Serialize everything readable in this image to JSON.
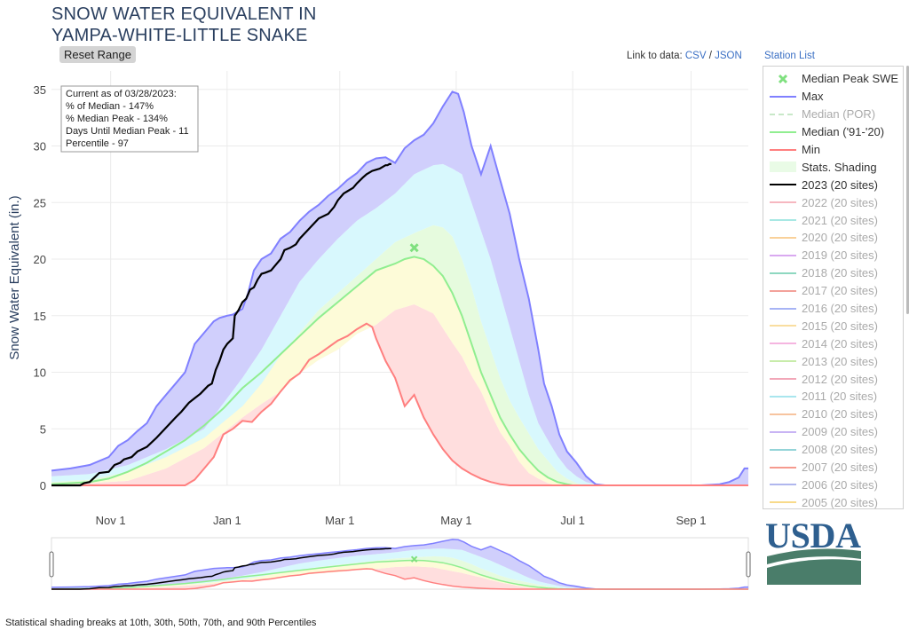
{
  "title_lines": [
    "SNOW WATER EQUIVALENT IN",
    "YAMPA-WHITE-LITTLE SNAKE"
  ],
  "reset_label": "Reset Range",
  "links": {
    "prefix": "Link to data:",
    "csv": "CSV",
    "sep": "/",
    "json": "JSON",
    "station_list": "Station List"
  },
  "info_box": [
    "Current as of 03/28/2023:",
    "% of Median - 147%",
    "% Median Peak - 134%",
    "Days Until Median Peak - 11",
    "Percentile - 97"
  ],
  "footnote": "Statistical shading breaks at 10th, 30th, 50th, 70th, and 90th Percentiles",
  "logo_text": "USDA",
  "colors": {
    "max": "#8080ff",
    "median": "#90ee90",
    "min": "#ff7f7f",
    "current": "#000000",
    "band_outer": "#d0cffc",
    "band_2": "#d8f8fd",
    "band_3": "#e6fbde",
    "band_4": "#fdfbd8",
    "band_5": "#ffdede",
    "axis_title": "#2a3f5f",
    "logo": "#2e5f8f",
    "logo_field": "#4a7d6a"
  },
  "legend": [
    {
      "label": "Median Peak SWE",
      "style": "marker",
      "color": "#7fe07f"
    },
    {
      "label": "Max",
      "style": "line",
      "color": "#8080ff"
    },
    {
      "label": "Median (POR)",
      "style": "dash",
      "color": "#c8e8c8",
      "dim": true
    },
    {
      "label": "Median ('91-'20)",
      "style": "line",
      "color": "#90ee90"
    },
    {
      "label": "Min",
      "style": "line",
      "color": "#ff7f7f"
    },
    {
      "label": "Stats. Shading",
      "style": "fill",
      "color": "#e9fbe6"
    },
    {
      "label": "2023 (20 sites)",
      "style": "line",
      "color": "#000000"
    },
    {
      "label": "2022 (20 sites)",
      "style": "line",
      "color": "#f6b7c0",
      "dim": true
    },
    {
      "label": "2021 (20 sites)",
      "style": "line",
      "color": "#a8e8e4",
      "dim": true
    },
    {
      "label": "2020 (20 sites)",
      "style": "line",
      "color": "#f9d19a",
      "dim": true
    },
    {
      "label": "2019 (20 sites)",
      "style": "line",
      "color": "#d9a9f0",
      "dim": true
    },
    {
      "label": "2018 (20 sites)",
      "style": "line",
      "color": "#8ed8c0",
      "dim": true
    },
    {
      "label": "2017 (20 sites)",
      "style": "line",
      "color": "#f3a29a",
      "dim": true
    },
    {
      "label": "2016 (20 sites)",
      "style": "line",
      "color": "#a7b4f5",
      "dim": true
    },
    {
      "label": "2015 (20 sites)",
      "style": "line",
      "color": "#f9dea0",
      "dim": true
    },
    {
      "label": "2014 (20 sites)",
      "style": "line",
      "color": "#f5b5e0",
      "dim": true
    },
    {
      "label": "2013 (20 sites)",
      "style": "line",
      "color": "#c8ecaa",
      "dim": true
    },
    {
      "label": "2012 (20 sites)",
      "style": "line",
      "color": "#f2a7b8",
      "dim": true
    },
    {
      "label": "2011 (20 sites)",
      "style": "line",
      "color": "#a9e6ee",
      "dim": true
    },
    {
      "label": "2010 (20 sites)",
      "style": "line",
      "color": "#f7c49f",
      "dim": true
    },
    {
      "label": "2009 (20 sites)",
      "style": "line",
      "color": "#c8b4f4",
      "dim": true
    },
    {
      "label": "2008 (20 sites)",
      "style": "line",
      "color": "#94d4d8",
      "dim": true
    },
    {
      "label": "2007 (20 sites)",
      "style": "line",
      "color": "#f59a8e",
      "dim": true
    },
    {
      "label": "2006 (20 sites)",
      "style": "line",
      "color": "#b0b7ee",
      "dim": true
    },
    {
      "label": "2005 (20 sites)",
      "style": "line",
      "color": "#f8da8a",
      "dim": true
    }
  ],
  "chart_data": {
    "type": "area",
    "ylabel": "Snow Water Equivalent (in.)",
    "xlabel": "",
    "xlim": [
      0,
      365
    ],
    "ylim": [
      0,
      36
    ],
    "yticks": [
      0,
      5,
      10,
      15,
      20,
      25,
      30,
      35
    ],
    "xticks": [
      {
        "label": "Nov 1",
        "day": 31
      },
      {
        "label": "Jan 1",
        "day": 92
      },
      {
        "label": "Mar 1",
        "day": 151
      },
      {
        "label": "May 1",
        "day": 212
      },
      {
        "label": "Jul 1",
        "day": 273
      },
      {
        "label": "Sep 1",
        "day": 335
      }
    ],
    "grid": true,
    "bands": [
      {
        "name": "p10-p30",
        "low": "min",
        "high": "p30"
      },
      {
        "name": "p30-p50",
        "low": "p30",
        "high": "median"
      },
      {
        "name": "p50-p70",
        "low": "median",
        "high": "p70"
      },
      {
        "name": "p70-p90",
        "low": "p70",
        "high": "p90"
      },
      {
        "name": "p90-max",
        "low": "p90",
        "high": "max"
      }
    ],
    "max": {
      "x": [
        0,
        10,
        20,
        30,
        35,
        40,
        45,
        50,
        55,
        60,
        65,
        70,
        75,
        80,
        85,
        88,
        92,
        95,
        100,
        103,
        106,
        110,
        115,
        120,
        125,
        130,
        135,
        140,
        145,
        150,
        155,
        160,
        165,
        170,
        175,
        180,
        185,
        190,
        195,
        200,
        205,
        210,
        213,
        216,
        220,
        225,
        230,
        235,
        240,
        245,
        250,
        255,
        258,
        262,
        266,
        270,
        275,
        280,
        285,
        290,
        300,
        310,
        320,
        330,
        340,
        350,
        355,
        360,
        363,
        365
      ],
      "y": [
        1.3,
        1.5,
        1.8,
        2.5,
        3.5,
        4.0,
        4.8,
        5.5,
        7.0,
        8.0,
        9.0,
        10.0,
        12.5,
        13.5,
        14.5,
        14.8,
        15.0,
        15.1,
        15.6,
        17.0,
        19.0,
        20.0,
        20.5,
        21.8,
        22.4,
        23.4,
        24.2,
        24.8,
        25.6,
        26.2,
        27.0,
        27.6,
        28.5,
        28.9,
        29.0,
        28.5,
        29.8,
        30.5,
        31.0,
        32.0,
        33.5,
        34.8,
        34.6,
        33.0,
        30.0,
        27.5,
        30.0,
        27.0,
        24.0,
        20.0,
        16.5,
        12.0,
        9.0,
        7.0,
        4.5,
        3.0,
        2.0,
        0.8,
        0.1,
        0.0,
        0.0,
        0.0,
        0.0,
        0.0,
        0.0,
        0.1,
        0.3,
        0.7,
        1.5,
        1.5
      ]
    },
    "p90": {
      "x": [
        0,
        20,
        40,
        60,
        80,
        100,
        110,
        120,
        130,
        140,
        150,
        160,
        170,
        180,
        190,
        200,
        205,
        210,
        215,
        220,
        225,
        230,
        235,
        240,
        245,
        250,
        255,
        260,
        265,
        270,
        275,
        280,
        285,
        290,
        300,
        320,
        340,
        365
      ],
      "y": [
        0.8,
        1.0,
        1.8,
        3.2,
        5.0,
        9.5,
        12.0,
        15.0,
        18.0,
        20.0,
        21.8,
        23.4,
        24.5,
        25.8,
        27.5,
        28.3,
        28.4,
        28.0,
        27.5,
        25.0,
        22.5,
        20.0,
        17.0,
        14.0,
        11.0,
        8.0,
        5.5,
        4.0,
        2.6,
        1.5,
        0.8,
        0.3,
        0.1,
        0.0,
        0.0,
        0.0,
        0.0,
        0.0
      ]
    },
    "p70": {
      "x": [
        0,
        20,
        40,
        60,
        80,
        100,
        110,
        120,
        130,
        140,
        150,
        160,
        170,
        180,
        190,
        200,
        205,
        210,
        215,
        220,
        225,
        230,
        235,
        240,
        245,
        250,
        255,
        260,
        265,
        270,
        275,
        280,
        290,
        300,
        365
      ],
      "y": [
        0.3,
        0.5,
        1.2,
        2.5,
        4.2,
        7.0,
        9.0,
        11.5,
        13.5,
        15.5,
        17.0,
        18.5,
        20.0,
        21.5,
        22.3,
        23.0,
        22.8,
        22.0,
        20.0,
        17.5,
        14.5,
        12.0,
        9.5,
        7.5,
        6.0,
        4.6,
        3.2,
        2.2,
        1.2,
        0.6,
        0.2,
        0.0,
        0.0,
        0.0,
        0.0
      ]
    },
    "median": {
      "x": [
        0,
        20,
        30,
        40,
        50,
        60,
        70,
        80,
        90,
        100,
        110,
        120,
        130,
        140,
        150,
        160,
        170,
        180,
        185,
        190,
        195,
        200,
        205,
        210,
        215,
        220,
        225,
        230,
        235,
        240,
        245,
        250,
        255,
        260,
        265,
        270,
        273,
        280,
        365
      ],
      "y": [
        0.1,
        0.3,
        0.6,
        1.2,
        2.0,
        3.0,
        4.0,
        5.3,
        6.8,
        8.6,
        10.0,
        11.6,
        13.2,
        14.8,
        16.2,
        17.6,
        19.0,
        19.6,
        20.0,
        20.2,
        20.0,
        19.4,
        18.5,
        17.0,
        15.0,
        12.5,
        10.0,
        8.0,
        6.0,
        4.5,
        3.2,
        2.2,
        1.3,
        0.7,
        0.3,
        0.1,
        0.0,
        0.0,
        0.0
      ]
    },
    "p30": {
      "x": [
        0,
        40,
        60,
        80,
        100,
        110,
        120,
        130,
        140,
        150,
        160,
        170,
        180,
        190,
        200,
        210,
        215,
        220,
        225,
        230,
        235,
        240,
        245,
        250,
        255,
        260,
        265,
        270,
        365
      ],
      "y": [
        0.0,
        0.4,
        1.5,
        3.3,
        6.0,
        7.2,
        8.3,
        9.9,
        11.1,
        12.0,
        13.4,
        14.2,
        15.5,
        16.0,
        15.2,
        12.6,
        11.4,
        9.7,
        8.3,
        6.4,
        4.7,
        3.5,
        2.1,
        1.1,
        0.6,
        0.2,
        0.0,
        0.0,
        0.0
      ]
    },
    "min": {
      "x": [
        0,
        10,
        20,
        30,
        40,
        50,
        60,
        70,
        75,
        80,
        85,
        90,
        95,
        100,
        105,
        110,
        115,
        120,
        125,
        130,
        135,
        140,
        145,
        150,
        155,
        160,
        165,
        168,
        170,
        175,
        180,
        185,
        190,
        195,
        200,
        205,
        210,
        215,
        220,
        225,
        230,
        235,
        240,
        245,
        250,
        252,
        365
      ],
      "y": [
        0.0,
        0.0,
        0.0,
        0.0,
        0.0,
        0.0,
        0.0,
        0.0,
        0.5,
        1.5,
        2.5,
        4.5,
        5.0,
        5.7,
        5.6,
        6.5,
        7.2,
        8.3,
        9.3,
        9.9,
        11.1,
        11.6,
        12.2,
        12.8,
        13.2,
        13.8,
        14.3,
        14.0,
        13.0,
        11.0,
        9.5,
        7.0,
        8.0,
        6.0,
        4.5,
        3.2,
        2.2,
        1.5,
        1.0,
        0.6,
        0.3,
        0.1,
        0.0,
        0.0,
        0.0,
        0.0,
        0.0
      ]
    },
    "series": [
      {
        "name": "2023 (20 sites)",
        "x": [
          0,
          15,
          17,
          20,
          25,
          30,
          33,
          36,
          38,
          42,
          45,
          50,
          55,
          60,
          65,
          68,
          70,
          72,
          75,
          78,
          82,
          84,
          86,
          88,
          90,
          92,
          95,
          96,
          98,
          100,
          102,
          104,
          106,
          108,
          110,
          112,
          115,
          118,
          120,
          122,
          125,
          128,
          130,
          135,
          140,
          145,
          148,
          150,
          153,
          155,
          158,
          160,
          163,
          165,
          168,
          170,
          172,
          174,
          175,
          176,
          177,
          178
        ],
        "y": [
          0.0,
          0.0,
          0.2,
          0.3,
          1.1,
          1.2,
          1.8,
          2.0,
          2.3,
          2.5,
          3.0,
          3.4,
          4.2,
          5.1,
          6.0,
          6.5,
          6.9,
          7.3,
          7.7,
          8.1,
          8.8,
          9.0,
          10.2,
          11.0,
          12.0,
          12.5,
          13.0,
          15.0,
          15.5,
          16.2,
          16.5,
          17.3,
          17.5,
          18.2,
          18.7,
          18.8,
          19.0,
          19.6,
          20.0,
          20.8,
          21.0,
          21.3,
          21.8,
          22.7,
          23.6,
          24.0,
          24.6,
          25.2,
          25.8,
          26.0,
          26.3,
          26.7,
          27.2,
          27.5,
          27.8,
          27.9,
          28.0,
          28.2,
          28.3,
          28.3,
          28.4,
          28.4
        ]
      }
    ],
    "median_peak": {
      "x": 190,
      "y": 21.0,
      "label": "Median Peak SWE"
    }
  }
}
